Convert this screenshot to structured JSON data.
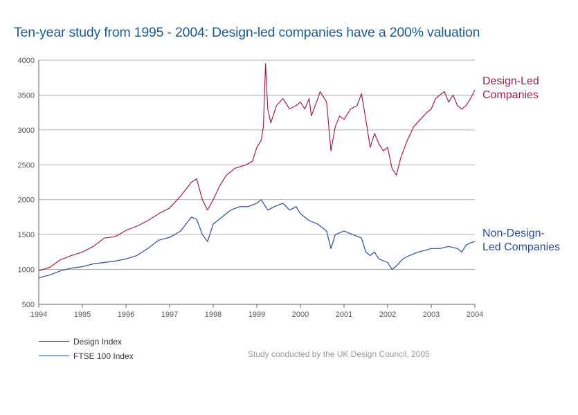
{
  "colors": {
    "design": "#a3203f",
    "ftse": "#2a4a9a",
    "title": "#1f5a8c",
    "grid": "#999999",
    "axis": "#666666"
  },
  "title": "Ten-year study from 1995 - 2004: Design-led companies have a 200% valuation",
  "labels": {
    "design_line1": "Design-Led",
    "design_line2": "Companies",
    "ftse_line1": "Non-Design-",
    "ftse_line2": "Led Companies"
  },
  "legend": {
    "design": "Design Index",
    "ftse": "FTSE 100 Index"
  },
  "source": "Study conducted by the UK Design Council, 2005",
  "chart_data": {
    "type": "line",
    "title": "Ten-year study from 1995 - 2004: Design-led companies have a 200% valuation",
    "xlabel": "",
    "ylabel": "",
    "xlim": [
      1994,
      2004
    ],
    "ylim": [
      500,
      4000
    ],
    "x_ticks": [
      "1994",
      "1995",
      "1996",
      "1997",
      "1998",
      "1999",
      "2000",
      "2001",
      "2002",
      "2003",
      "2004"
    ],
    "y_ticks": [
      500,
      1000,
      1500,
      2000,
      2500,
      3000,
      3500,
      4000
    ],
    "grid": "horizontal",
    "legend": "bottom-left",
    "series": [
      {
        "name": "Design Index",
        "points": [
          [
            1994.0,
            980
          ],
          [
            1994.25,
            1030
          ],
          [
            1994.5,
            1140
          ],
          [
            1994.75,
            1200
          ],
          [
            1995.0,
            1250
          ],
          [
            1995.25,
            1330
          ],
          [
            1995.5,
            1450
          ],
          [
            1995.75,
            1470
          ],
          [
            1996.0,
            1560
          ],
          [
            1996.25,
            1620
          ],
          [
            1996.5,
            1700
          ],
          [
            1996.75,
            1800
          ],
          [
            1997.0,
            1880
          ],
          [
            1997.25,
            2050
          ],
          [
            1997.5,
            2250
          ],
          [
            1997.62,
            2300
          ],
          [
            1997.75,
            2000
          ],
          [
            1997.87,
            1850
          ],
          [
            1998.0,
            2000
          ],
          [
            1998.15,
            2200
          ],
          [
            1998.3,
            2350
          ],
          [
            1998.5,
            2450
          ],
          [
            1998.75,
            2500
          ],
          [
            1998.9,
            2550
          ],
          [
            1999.0,
            2750
          ],
          [
            1999.1,
            2850
          ],
          [
            1999.15,
            3050
          ],
          [
            1999.2,
            3950
          ],
          [
            1999.25,
            3300
          ],
          [
            1999.32,
            3100
          ],
          [
            1999.45,
            3350
          ],
          [
            1999.6,
            3450
          ],
          [
            1999.75,
            3300
          ],
          [
            1999.9,
            3350
          ],
          [
            2000.0,
            3400
          ],
          [
            2000.1,
            3300
          ],
          [
            2000.2,
            3450
          ],
          [
            2000.25,
            3200
          ],
          [
            2000.4,
            3450
          ],
          [
            2000.45,
            3550
          ],
          [
            2000.6,
            3400
          ],
          [
            2000.7,
            2700
          ],
          [
            2000.8,
            3050
          ],
          [
            2000.9,
            3200
          ],
          [
            2001.0,
            3150
          ],
          [
            2001.15,
            3300
          ],
          [
            2001.3,
            3350
          ],
          [
            2001.4,
            3520
          ],
          [
            2001.5,
            3150
          ],
          [
            2001.6,
            2750
          ],
          [
            2001.7,
            2950
          ],
          [
            2001.8,
            2800
          ],
          [
            2001.9,
            2700
          ],
          [
            2002.0,
            2750
          ],
          [
            2002.1,
            2450
          ],
          [
            2002.2,
            2350
          ],
          [
            2002.3,
            2600
          ],
          [
            2002.45,
            2850
          ],
          [
            2002.6,
            3050
          ],
          [
            2002.75,
            3150
          ],
          [
            2002.9,
            3250
          ],
          [
            2003.0,
            3300
          ],
          [
            2003.1,
            3450
          ],
          [
            2003.2,
            3500
          ],
          [
            2003.3,
            3550
          ],
          [
            2003.4,
            3400
          ],
          [
            2003.5,
            3500
          ],
          [
            2003.6,
            3350
          ],
          [
            2003.7,
            3300
          ],
          [
            2003.8,
            3350
          ],
          [
            2003.9,
            3450
          ],
          [
            2004.0,
            3570
          ]
        ]
      },
      {
        "name": "FTSE 100 Index",
        "points": [
          [
            1994.0,
            880
          ],
          [
            1994.25,
            920
          ],
          [
            1994.5,
            980
          ],
          [
            1994.75,
            1020
          ],
          [
            1995.0,
            1040
          ],
          [
            1995.25,
            1080
          ],
          [
            1995.5,
            1100
          ],
          [
            1995.75,
            1120
          ],
          [
            1996.0,
            1150
          ],
          [
            1996.25,
            1200
          ],
          [
            1996.5,
            1300
          ],
          [
            1996.75,
            1420
          ],
          [
            1997.0,
            1460
          ],
          [
            1997.25,
            1550
          ],
          [
            1997.5,
            1750
          ],
          [
            1997.62,
            1720
          ],
          [
            1997.75,
            1500
          ],
          [
            1997.87,
            1400
          ],
          [
            1998.0,
            1650
          ],
          [
            1998.2,
            1750
          ],
          [
            1998.4,
            1850
          ],
          [
            1998.6,
            1900
          ],
          [
            1998.8,
            1900
          ],
          [
            1999.0,
            1950
          ],
          [
            1999.1,
            2000
          ],
          [
            1999.25,
            1850
          ],
          [
            1999.4,
            1900
          ],
          [
            1999.6,
            1950
          ],
          [
            1999.75,
            1850
          ],
          [
            1999.9,
            1900
          ],
          [
            2000.0,
            1800
          ],
          [
            2000.2,
            1700
          ],
          [
            2000.4,
            1650
          ],
          [
            2000.6,
            1550
          ],
          [
            2000.7,
            1300
          ],
          [
            2000.8,
            1500
          ],
          [
            2001.0,
            1550
          ],
          [
            2001.2,
            1500
          ],
          [
            2001.4,
            1450
          ],
          [
            2001.5,
            1250
          ],
          [
            2001.6,
            1200
          ],
          [
            2001.7,
            1250
          ],
          [
            2001.8,
            1150
          ],
          [
            2002.0,
            1100
          ],
          [
            2002.1,
            1000
          ],
          [
            2002.2,
            1050
          ],
          [
            2002.35,
            1150
          ],
          [
            2002.5,
            1200
          ],
          [
            2002.7,
            1250
          ],
          [
            2002.9,
            1280
          ],
          [
            2003.0,
            1300
          ],
          [
            2003.2,
            1300
          ],
          [
            2003.4,
            1330
          ],
          [
            2003.6,
            1300
          ],
          [
            2003.7,
            1250
          ],
          [
            2003.8,
            1350
          ],
          [
            2003.9,
            1380
          ],
          [
            2004.0,
            1400
          ]
        ]
      }
    ]
  }
}
